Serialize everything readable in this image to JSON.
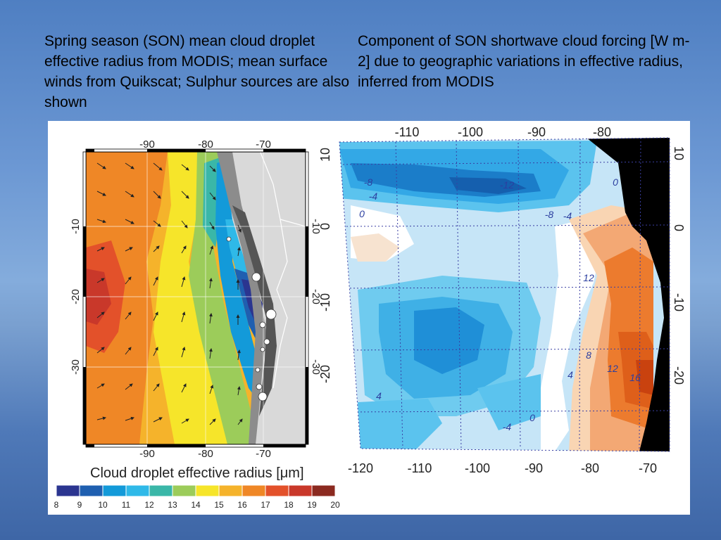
{
  "captions": {
    "left": "Spring season (SON) mean cloud droplet effective radius from MODIS; mean surface winds from Quikscat; Sulphur sources are also shown",
    "right": "Component of SON shortwave cloud forcing [W m-2] due to geographic variations in effective radius, inferred from MODIS"
  },
  "left_map": {
    "lon_ticks": [
      "-90",
      "-80",
      "-70"
    ],
    "lat_ticks": [
      "-10",
      "-20",
      "-30"
    ],
    "colorbar_title": "Cloud droplet effective radius [μm]",
    "colorbar_ticks": [
      "8",
      "9",
      "10",
      "11",
      "12",
      "13",
      "14",
      "15",
      "16",
      "17",
      "18",
      "19",
      "20"
    ],
    "colorbar_colors": [
      "#2b3590",
      "#1f5fb0",
      "#139ad9",
      "#2fb9e8",
      "#3ab7a8",
      "#9ccc5a",
      "#f6e52a",
      "#f5b32b",
      "#ef8726",
      "#e3512a",
      "#c9382a",
      "#8b2a20"
    ]
  },
  "right_map": {
    "lon_ticks_top": [
      "-110",
      "-100",
      "-90",
      "-80"
    ],
    "lon_ticks_bottom": [
      "-120",
      "-110",
      "-100",
      "-90",
      "-80",
      "-70"
    ],
    "lat_ticks": [
      "10",
      "0",
      "-10",
      "-20"
    ],
    "contour_labels": [
      "-8",
      "-4",
      "0",
      "-12",
      "-8",
      "-4",
      "12",
      "8",
      "12",
      "16",
      "4",
      "4",
      "0",
      "-4",
      "0"
    ]
  }
}
